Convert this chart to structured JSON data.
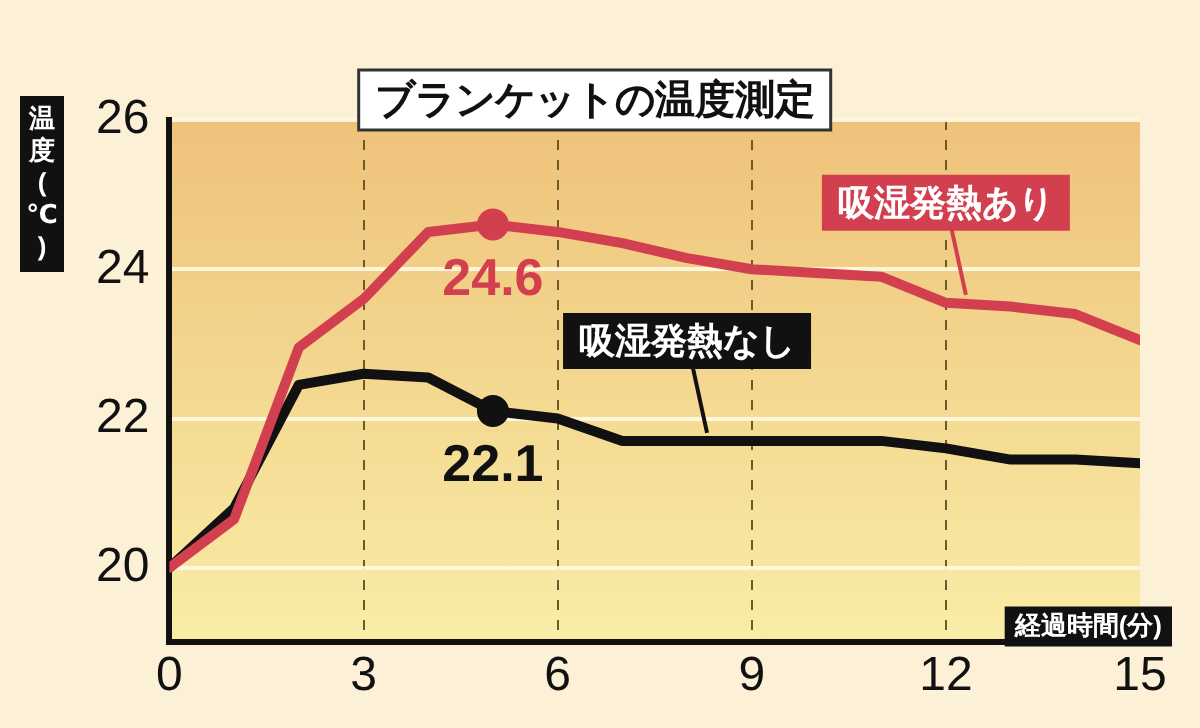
{
  "chart_data": {
    "type": "line",
    "title": "ブランケットの温度測定",
    "xlabel": "経過時間(分)",
    "ylabel": "温度(℃)",
    "x": [
      0,
      1,
      2,
      3,
      4,
      5,
      6,
      7,
      8,
      9,
      10,
      11,
      12,
      13,
      14,
      15
    ],
    "series": [
      {
        "name": "吸湿発熱あり",
        "color": "#d2404f",
        "values": [
          20,
          20.65,
          22.95,
          23.6,
          24.5,
          24.6,
          24.5,
          24.35,
          24.15,
          24.0,
          23.95,
          23.9,
          23.55,
          23.5,
          23.4,
          23.05
        ],
        "value_labels": [
          null,
          null,
          null,
          null,
          null,
          "24.6",
          null,
          null,
          null,
          null,
          null,
          null,
          null,
          null,
          null,
          null
        ]
      },
      {
        "name": "吸湿発熱なし",
        "color": "#111111",
        "values": [
          20,
          20.8,
          22.45,
          22.6,
          22.55,
          22.1,
          22.0,
          21.7,
          21.7,
          21.7,
          21.7,
          21.7,
          21.6,
          21.45,
          21.45,
          21.4
        ],
        "value_labels": [
          null,
          null,
          null,
          null,
          null,
          "22.1",
          null,
          null,
          null,
          null,
          null,
          null,
          null,
          null,
          null,
          null
        ]
      }
    ],
    "xlim": [
      0,
      15
    ],
    "xticks": [
      0,
      3,
      6,
      9,
      12,
      15
    ],
    "ylim": [
      19,
      26
    ],
    "yticks": [
      20,
      22,
      24,
      26
    ],
    "grid": true,
    "legend": false,
    "marker": "none",
    "line_style": "solid"
  }
}
